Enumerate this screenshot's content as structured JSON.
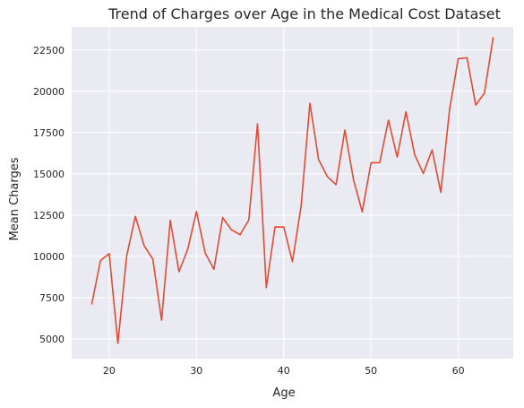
{
  "chart_data": {
    "type": "line",
    "title": "Trend of Charges over Age in the Medical Cost Dataset",
    "xlabel": "Age",
    "ylabel": "Mean Charges",
    "xlim": [
      15.7,
      66.3
    ],
    "ylim": [
      3800,
      23900
    ],
    "grid": true,
    "x_ticks": [
      20,
      30,
      40,
      50,
      60
    ],
    "y_ticks": [
      5000,
      7500,
      10000,
      12500,
      15000,
      17500,
      20000,
      22500
    ],
    "line_color": "#e24a33",
    "background_color": "#eaeaf2",
    "series": [
      {
        "x": [
          18,
          19,
          20,
          21,
          22,
          23,
          24,
          25,
          26,
          27,
          28,
          29,
          30,
          31,
          32,
          33,
          34,
          35,
          36,
          37,
          38,
          39,
          40,
          41,
          42,
          43,
          44,
          45,
          46,
          47,
          48,
          49,
          50,
          51,
          52,
          53,
          54,
          55,
          56,
          57,
          58,
          59,
          60,
          61,
          62,
          63,
          64
        ],
        "values": [
          7086,
          9747,
          10159,
          4730,
          10012,
          12420,
          10648,
          9838,
          6133,
          12184,
          9069,
          10431,
          12720,
          10196,
          9220,
          12352,
          11613,
          11307,
          12204,
          18020,
          8103,
          11779,
          11773,
          9680,
          13061,
          19267,
          15860,
          14831,
          14343,
          17654,
          14632,
          12696,
          15663,
          15682,
          18257,
          16020,
          18759,
          16164,
          15026,
          16447,
          13879,
          18896,
          21979,
          22025,
          19162,
          19885,
          23275
        ]
      }
    ]
  }
}
